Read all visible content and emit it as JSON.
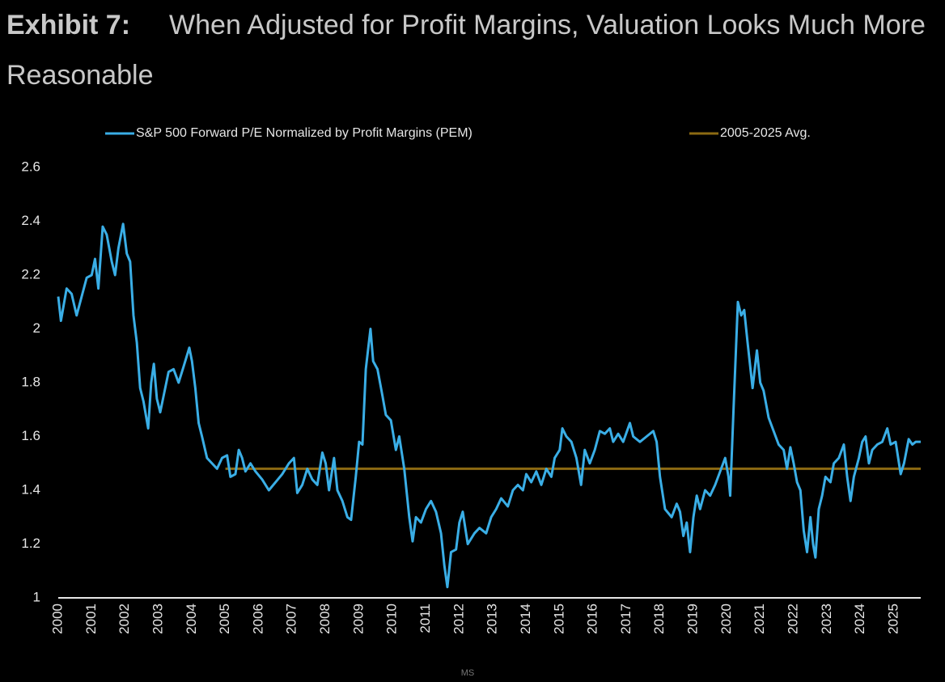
{
  "chart_data": {
    "type": "line",
    "title_label": "Exhibit 7:",
    "title": "When Adjusted for Profit Margins, Valuation Looks Much More Reasonable",
    "source": "MS",
    "legend": "top",
    "xlim": [
      2000,
      2025.8
    ],
    "xticks": [
      2000,
      2001,
      2002,
      2003,
      2004,
      2005,
      2006,
      2007,
      2008,
      2009,
      2010,
      2011,
      2012,
      2013,
      2014,
      2015,
      2016,
      2017,
      2018,
      2019,
      2020,
      2021,
      2022,
      2023,
      2024,
      2025
    ],
    "ylim": [
      1,
      2.6
    ],
    "yticks": [
      1,
      1.2,
      1.4,
      1.6,
      1.8,
      2,
      2.2,
      2.4,
      2.6
    ],
    "grid": false,
    "series": [
      {
        "name": "S&P 500 Forward P/E Normalized by Profit Margins (PEM)",
        "color": "#3aaee6",
        "x": [
          2000.0,
          2000.08,
          2000.25,
          2000.4,
          2000.55,
          2000.7,
          2000.85,
          2001.0,
          2001.1,
          2001.2,
          2001.33,
          2001.45,
          2001.6,
          2001.7,
          2001.8,
          2001.94,
          2002.05,
          2002.15,
          2002.25,
          2002.35,
          2002.45,
          2002.55,
          2002.69,
          2002.78,
          2002.86,
          2002.95,
          2003.05,
          2003.15,
          2003.3,
          2003.45,
          2003.6,
          2003.75,
          2003.92,
          2004.0,
          2004.1,
          2004.2,
          2004.3,
          2004.45,
          2004.6,
          2004.75,
          2004.9,
          2005.05,
          2005.15,
          2005.3,
          2005.4,
          2005.5,
          2005.6,
          2005.75,
          2005.9,
          2006.1,
          2006.3,
          2006.5,
          2006.7,
          2006.9,
          2007.05,
          2007.15,
          2007.3,
          2007.45,
          2007.6,
          2007.75,
          2007.9,
          2008.0,
          2008.1,
          2008.25,
          2008.35,
          2008.5,
          2008.65,
          2008.76,
          2008.9,
          2009.0,
          2009.1,
          2009.2,
          2009.34,
          2009.42,
          2009.55,
          2009.7,
          2009.8,
          2009.95,
          2010.1,
          2010.2,
          2010.35,
          2010.5,
          2010.6,
          2010.7,
          2010.85,
          2011.0,
          2011.15,
          2011.3,
          2011.45,
          2011.55,
          2011.64,
          2011.75,
          2011.9,
          2012.0,
          2012.1,
          2012.25,
          2012.45,
          2012.6,
          2012.8,
          2012.95,
          2013.1,
          2013.25,
          2013.45,
          2013.6,
          2013.75,
          2013.9,
          2014.0,
          2014.15,
          2014.3,
          2014.45,
          2014.6,
          2014.75,
          2014.85,
          2015.0,
          2015.08,
          2015.2,
          2015.35,
          2015.5,
          2015.64,
          2015.75,
          2015.9,
          2016.05,
          2016.2,
          2016.35,
          2016.5,
          2016.6,
          2016.75,
          2016.9,
          2017.1,
          2017.2,
          2017.4,
          2017.6,
          2017.8,
          2017.9,
          2018.0,
          2018.15,
          2018.35,
          2018.5,
          2018.6,
          2018.7,
          2018.8,
          2018.9,
          2019.0,
          2019.1,
          2019.2,
          2019.35,
          2019.5,
          2019.65,
          2019.8,
          2019.95,
          2020.05,
          2020.1,
          2020.2,
          2020.33,
          2020.43,
          2020.52,
          2020.62,
          2020.77,
          2020.9,
          2021.0,
          2021.1,
          2021.25,
          2021.4,
          2021.55,
          2021.7,
          2021.8,
          2021.9,
          2022.0,
          2022.1,
          2022.2,
          2022.3,
          2022.4,
          2022.5,
          2022.58,
          2022.65,
          2022.75,
          2022.85,
          2022.95,
          2023.1,
          2023.2,
          2023.35,
          2023.5,
          2023.6,
          2023.7,
          2023.8,
          2023.95,
          2024.05,
          2024.15,
          2024.25,
          2024.35,
          2024.5,
          2024.65,
          2024.8,
          2024.9,
          2025.05,
          2025.15,
          2025.2,
          2025.3,
          2025.44,
          2025.55,
          2025.65,
          2025.8
        ],
        "values": [
          2.12,
          2.03,
          2.15,
          2.13,
          2.05,
          2.12,
          2.19,
          2.2,
          2.26,
          2.15,
          2.38,
          2.35,
          2.25,
          2.2,
          2.3,
          2.39,
          2.28,
          2.25,
          2.05,
          1.95,
          1.78,
          1.73,
          1.63,
          1.8,
          1.87,
          1.74,
          1.69,
          1.75,
          1.84,
          1.85,
          1.8,
          1.86,
          1.93,
          1.88,
          1.78,
          1.65,
          1.6,
          1.52,
          1.5,
          1.48,
          1.52,
          1.53,
          1.45,
          1.46,
          1.55,
          1.52,
          1.47,
          1.5,
          1.47,
          1.44,
          1.4,
          1.43,
          1.46,
          1.5,
          1.52,
          1.39,
          1.42,
          1.48,
          1.44,
          1.42,
          1.54,
          1.5,
          1.4,
          1.52,
          1.4,
          1.36,
          1.3,
          1.29,
          1.45,
          1.58,
          1.57,
          1.85,
          2.0,
          1.88,
          1.85,
          1.75,
          1.68,
          1.66,
          1.55,
          1.6,
          1.48,
          1.3,
          1.21,
          1.3,
          1.28,
          1.33,
          1.36,
          1.32,
          1.24,
          1.12,
          1.04,
          1.17,
          1.18,
          1.28,
          1.32,
          1.2,
          1.24,
          1.26,
          1.24,
          1.3,
          1.33,
          1.37,
          1.34,
          1.4,
          1.42,
          1.4,
          1.46,
          1.43,
          1.47,
          1.42,
          1.48,
          1.45,
          1.52,
          1.55,
          1.63,
          1.6,
          1.58,
          1.52,
          1.42,
          1.55,
          1.5,
          1.55,
          1.62,
          1.61,
          1.63,
          1.58,
          1.61,
          1.58,
          1.65,
          1.6,
          1.58,
          1.6,
          1.62,
          1.58,
          1.45,
          1.33,
          1.3,
          1.35,
          1.32,
          1.23,
          1.28,
          1.17,
          1.3,
          1.38,
          1.33,
          1.4,
          1.38,
          1.42,
          1.47,
          1.52,
          1.45,
          1.38,
          1.7,
          2.1,
          2.05,
          2.07,
          1.95,
          1.78,
          1.92,
          1.8,
          1.77,
          1.67,
          1.62,
          1.57,
          1.55,
          1.48,
          1.56,
          1.5,
          1.43,
          1.4,
          1.25,
          1.17,
          1.3,
          1.2,
          1.15,
          1.33,
          1.38,
          1.45,
          1.43,
          1.5,
          1.52,
          1.57,
          1.45,
          1.36,
          1.45,
          1.52,
          1.58,
          1.6,
          1.5,
          1.55,
          1.57,
          1.58,
          1.63,
          1.57,
          1.58,
          1.5,
          1.46,
          1.5,
          1.59,
          1.57,
          1.58,
          1.58
        ]
      },
      {
        "name": "2005-2025 Avg.",
        "color": "#8c6a12",
        "x": [
          2005,
          2025.8
        ],
        "values": [
          1.48,
          1.48
        ]
      }
    ]
  }
}
